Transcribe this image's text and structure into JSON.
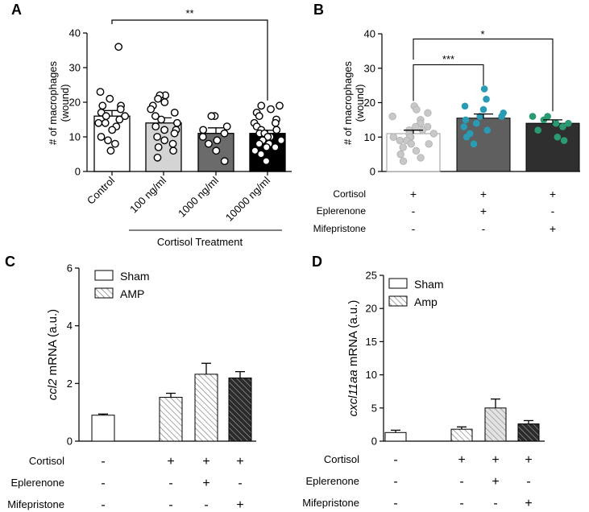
{
  "chart_data": [
    {
      "panel": "A",
      "type": "bar",
      "ylabel": "# of macrophages (wound)",
      "ylabel_lines": [
        "# of macrophages",
        "(wound)"
      ],
      "ylim": [
        0,
        40
      ],
      "yticks": [
        0,
        10,
        20,
        30,
        40
      ],
      "categories": [
        "Control",
        "100 ng/ml",
        "1000 ng/ml",
        "10000 ng/ml"
      ],
      "xlabel": "Cortisol Treatment",
      "values": [
        16,
        14,
        11,
        11
      ],
      "errors": [
        1.6,
        1.5,
        1.6,
        0.9
      ],
      "bar_colors": [
        "#ffffff",
        "#d4d4d4",
        "#6b6b6b",
        "#000000"
      ],
      "points": [
        [
          36,
          23,
          21,
          19,
          19,
          18,
          17,
          16,
          16,
          15,
          14,
          14,
          13,
          12,
          10,
          9,
          8,
          6
        ],
        [
          22,
          22,
          21,
          20,
          19,
          18,
          17,
          16,
          15,
          14,
          13,
          12,
          12,
          11,
          10,
          9,
          8,
          7,
          6,
          4
        ],
        [
          16,
          16,
          13,
          12,
          11,
          10,
          9,
          8,
          6,
          3
        ],
        [
          19,
          19,
          18,
          17,
          16,
          15,
          14,
          14,
          13,
          12,
          12,
          11,
          11,
          10,
          10,
          9,
          9,
          8,
          8,
          7,
          7,
          6,
          5,
          3
        ]
      ],
      "point_fill": "#ffffff",
      "significance": [
        {
          "from": "Control",
          "to": "10000 ng/ml",
          "label": "**"
        }
      ]
    },
    {
      "panel": "B",
      "type": "bar",
      "ylabel": "# of macrophages (wound)",
      "ylabel_lines": [
        "# of macrophages",
        "(wound)"
      ],
      "ylim": [
        0,
        40
      ],
      "yticks": [
        0,
        10,
        20,
        30,
        40
      ],
      "values": [
        11,
        15.5,
        14
      ],
      "errors": [
        1.0,
        1.2,
        1.0
      ],
      "bar_colors": [
        "#ffffff",
        "#5f5f5f",
        "#2f2f2f"
      ],
      "point_colors": [
        "#c8c8c8",
        "#2a9bb5",
        "#2a9a70"
      ],
      "points": [
        [
          19,
          18,
          17,
          16,
          15,
          14,
          13,
          13,
          12,
          12,
          11,
          11,
          10,
          10,
          10,
          9,
          9,
          8,
          8,
          7,
          6,
          5,
          4,
          3
        ],
        [
          24,
          21,
          19,
          18,
          17,
          16,
          16,
          15,
          14,
          13,
          12,
          11,
          10,
          8
        ],
        [
          16,
          16,
          15,
          14,
          14,
          13,
          12,
          10,
          9
        ]
      ],
      "treatment_rows": [
        {
          "label": "Cortisol",
          "signs": [
            "+",
            "+",
            "+"
          ]
        },
        {
          "label": "Eplerenone",
          "signs": [
            "-",
            "+",
            "-"
          ]
        },
        {
          "label": "Mifepristone",
          "signs": [
            "-",
            "-",
            "+"
          ]
        }
      ],
      "significance": [
        {
          "from": 0,
          "to": 1,
          "label": "***"
        },
        {
          "from": 0,
          "to": 2,
          "label": "*"
        }
      ]
    },
    {
      "panel": "C",
      "type": "bar",
      "ylabel_italic": "ccl2",
      "ylabel_rest": " mRNA (a.u.)",
      "ylim": [
        0,
        6
      ],
      "yticks": [
        0,
        2,
        4,
        6
      ],
      "legend": [
        {
          "name": "Sham",
          "pattern": "solid"
        },
        {
          "name": "AMP",
          "pattern": "hatch"
        }
      ],
      "legend_position": "top-left",
      "values": [
        0.9,
        null,
        1.52,
        2.32,
        2.19
      ],
      "errors": [
        0.04,
        null,
        0.14,
        0.38,
        0.22
      ],
      "bar_styles": [
        "open",
        "none",
        "hatch-light",
        "hatch-light",
        "hatch-dark"
      ],
      "treatment_rows": [
        {
          "label": "Cortisol",
          "signs": [
            "-",
            "",
            "+",
            "+",
            "+"
          ]
        },
        {
          "label": "Eplerenone",
          "signs": [
            "-",
            "",
            "-",
            "+",
            "-"
          ]
        },
        {
          "label": "Mifepristone",
          "signs": [
            "-",
            "",
            "-",
            "-",
            "+"
          ]
        }
      ]
    },
    {
      "panel": "D",
      "type": "bar",
      "ylabel_italic": "cxcl11aa",
      "ylabel_rest": " mRNA (a.u.)",
      "ylim": [
        0,
        25
      ],
      "yticks": [
        0,
        5,
        10,
        15,
        20,
        25
      ],
      "legend": [
        {
          "name": "Sham",
          "pattern": "solid"
        },
        {
          "name": "Amp",
          "pattern": "hatch"
        }
      ],
      "legend_position": "top-left",
      "values": [
        1.3,
        null,
        1.8,
        5.0,
        2.6
      ],
      "errors": [
        0.35,
        null,
        0.35,
        1.35,
        0.5
      ],
      "bar_styles": [
        "open",
        "none",
        "hatch-light",
        "hatch-gray",
        "hatch-dark"
      ],
      "treatment_rows": [
        {
          "label": "Cortisol",
          "signs": [
            "-",
            "",
            "+",
            "+",
            "+"
          ]
        },
        {
          "label": "Eplerenone",
          "signs": [
            "-",
            "",
            "-",
            "+",
            "-"
          ]
        },
        {
          "label": "Mifepristone",
          "signs": [
            "-",
            "",
            "-",
            "-",
            "+"
          ]
        }
      ]
    }
  ]
}
